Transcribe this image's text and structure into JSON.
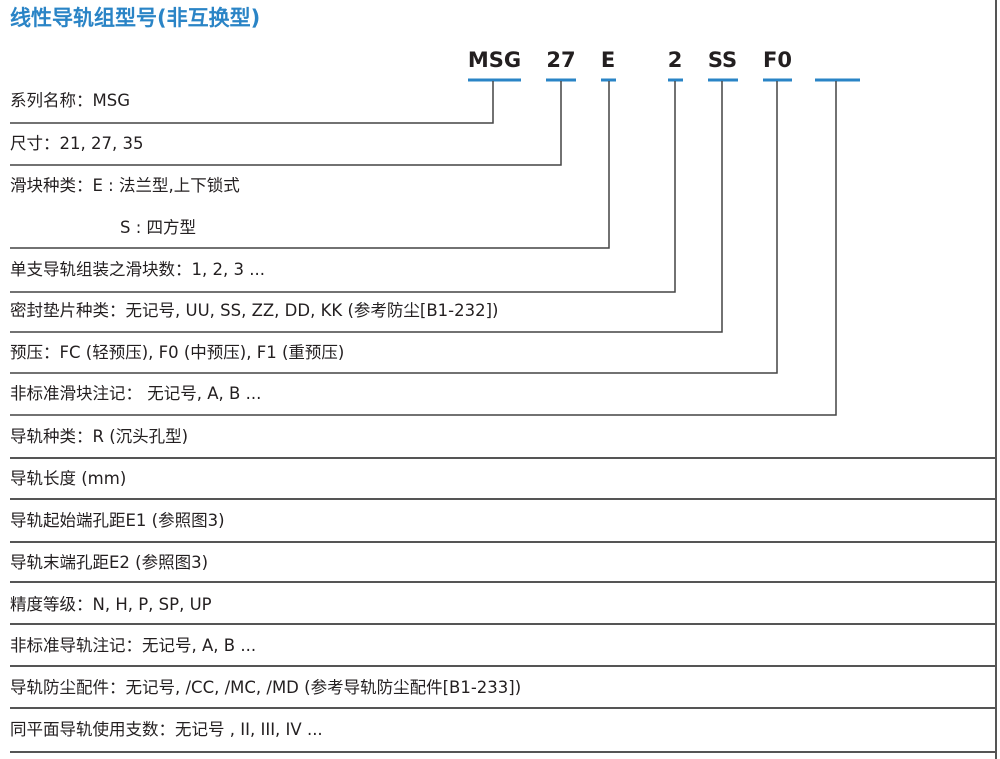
{
  "title": "线性导轨组型号(非互换型)",
  "accent_color": "#2a84c6",
  "codes": [
    "MSG",
    "27",
    "E",
    "2",
    "SS",
    "F0",
    ""
  ],
  "rows": [
    "系列名称：MSG",
    "尺寸：21, 27, 35",
    "滑块种类：E : 法兰型,上下锁式",
    "S : 四方型",
    "单支导轨组装之滑块数：1, 2, 3 ...",
    "密封垫片种类：无记号, UU, SS, ZZ, DD, KK (参考防尘[B1-232])",
    "预压：FC (轻预压), F0 (中预压), F1 (重预压)",
    "非标准滑块注记： 无记号, A, B ...",
    "导轨种类：R (沉头孔型)",
    "导轨长度 (mm)",
    "导轨起始端孔距E1 (参照图3)",
    "导轨末端孔距E2 (参照图3)",
    "精度等级：N, H, P, SP, UP",
    "非标准导轨注记：无记号, A, B ...",
    "导轨防尘配件：无记号, /CC, /MC, /MD (参考导轨防尘配件[B1-233])",
    "同平面导轨使用支数：无记号 , II, III, IV ..."
  ]
}
